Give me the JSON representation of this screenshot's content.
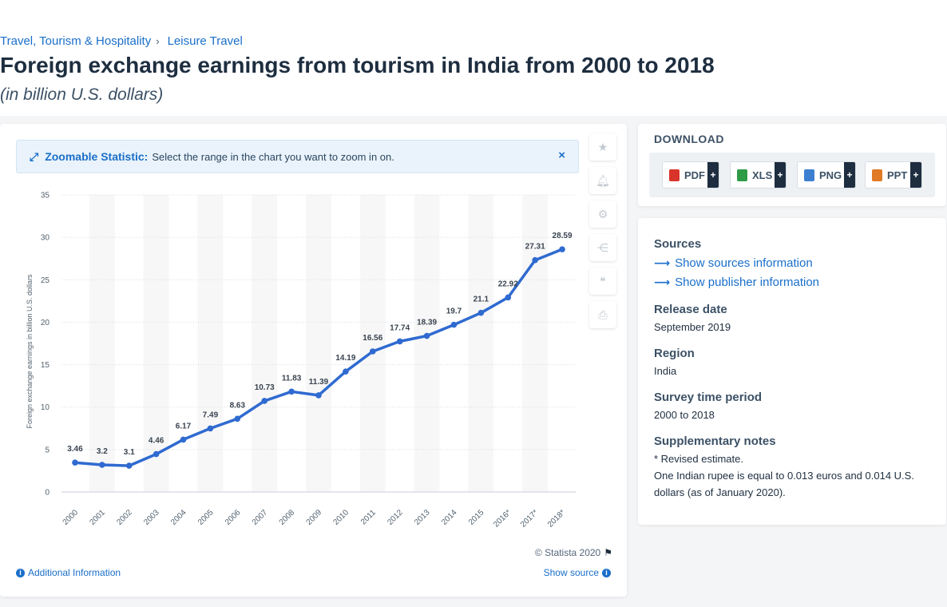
{
  "breadcrumb": [
    "Travel, Tourism & Hospitality",
    "Leisure Travel"
  ],
  "title": "Foreign exchange earnings from tourism in India from 2000 to 2018",
  "subtitle": "(in billion U.S. dollars)",
  "zoom_banner": {
    "strong": "Zoomable Statistic:",
    "text": "Select the range in the chart you want to zoom in on.",
    "close": "×"
  },
  "tools": [
    "star-icon",
    "bell-icon",
    "gear-icon",
    "share-icon",
    "quote-icon",
    "print-icon"
  ],
  "footer": {
    "copyright": "© Statista 2020",
    "additional_info": "Additional Information",
    "show_source": "Show source"
  },
  "download": {
    "title": "DOWNLOAD",
    "formats": [
      {
        "label": "PDF",
        "color": "#d9342b"
      },
      {
        "label": "XLS",
        "color": "#2e9b47"
      },
      {
        "label": "PNG",
        "color": "#3c7fd1"
      },
      {
        "label": "PPT",
        "color": "#e07a25"
      }
    ],
    "plus": "+"
  },
  "info": {
    "sources_head": "Sources",
    "show_sources": "Show sources information",
    "show_publisher": "Show publisher information",
    "release_head": "Release date",
    "release_val": "September 2019",
    "region_head": "Region",
    "region_val": "India",
    "survey_head": "Survey time period",
    "survey_val": "2000 to 2018",
    "notes_head": "Supplementary notes",
    "notes_1": "* Revised estimate.",
    "notes_2": "One Indian rupee is equal to 0.013 euros and 0.014 U.S. dollars (as of January 2020)."
  },
  "colors": {
    "line": "#2f6ad0",
    "accent": "#1a6fc9"
  },
  "chart_data": {
    "type": "line",
    "categories": [
      "2000",
      "2001",
      "2002",
      "2003",
      "2004",
      "2005",
      "2006",
      "2007",
      "2008",
      "2009",
      "2010",
      "2011",
      "2012",
      "2013",
      "2014",
      "2015",
      "2016*",
      "2017*",
      "2018*"
    ],
    "series": [
      {
        "values": [
          3.46,
          3.2,
          3.1,
          4.46,
          6.17,
          7.49,
          8.63,
          10.73,
          11.83,
          11.39,
          14.19,
          16.56,
          17.74,
          18.39,
          19.7,
          21.1,
          22.92,
          27.31,
          28.59
        ]
      }
    ],
    "data_labels": [
      "3.46",
      "3.2",
      "3.1",
      "4.46",
      "6.17",
      "7.49",
      "8.63",
      "10.73",
      "11.83",
      "11.39",
      "14.19",
      "16.56",
      "17.74",
      "18.39",
      "19.7",
      "21.1",
      "22.92",
      "27.31",
      "28.59"
    ],
    "ylabel": "Foreign exchange earnings in billion U.S. dollars",
    "yticks": [
      "0",
      "5",
      "10",
      "15",
      "20",
      "25",
      "30",
      "35"
    ],
    "ylim": [
      0,
      35
    ],
    "grid": true,
    "legend": "none"
  }
}
